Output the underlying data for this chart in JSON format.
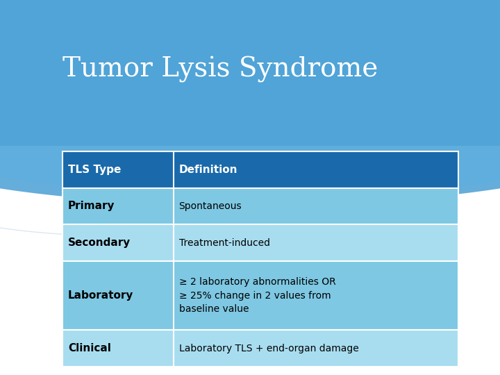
{
  "title": "Tumor Lysis Syndrome",
  "title_color": "#ffffff",
  "title_fontsize": 28,
  "bg_top_color": "#1a5da0",
  "bg_bottom_color": "#f0f0f0",
  "table_header_bg": "#1a6aab",
  "table_header_text": "#ffffff",
  "table_row_bg1": "#7ec8e3",
  "table_row_bg2": "#a8ddf0",
  "table_border_color": "#ffffff",
  "table_text_color": "#000000",
  "col1_header": "TLS Type",
  "col2_header": "Definition",
  "rows": [
    [
      "Primary",
      "Spontaneous"
    ],
    [
      "Secondary",
      "Treatment-induced"
    ],
    [
      "Laboratory",
      "≥ 2 laboratory abnormalities OR\n≥ 25% change in 2 values from\nbaseline value"
    ],
    [
      "Clinical",
      "Laboratory TLS + end-organ damage"
    ]
  ]
}
